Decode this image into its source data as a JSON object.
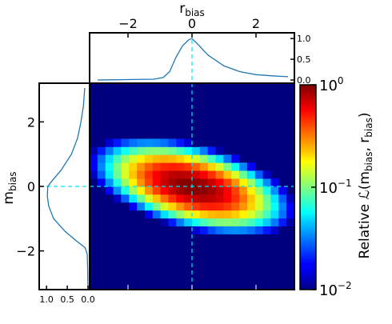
{
  "chart_data": {
    "type": "heatmap",
    "title": "",
    "xlabel": "r",
    "xlabel_sub": "bias",
    "ylabel": "m",
    "ylabel_sub": "bias",
    "colorbar_label_prefix": "Relative ",
    "colorbar_label_script": "ℒ",
    "colorbar_label_args_open": "(m",
    "colorbar_label_args_sub1": "bias",
    "colorbar_label_args_mid": ", r",
    "colorbar_label_args_sub2": "bias",
    "colorbar_label_args_close": ")",
    "xlim": [
      -3.2,
      3.2
    ],
    "ylim": [
      -3.2,
      3.2
    ],
    "x_ticks": [
      -2,
      0,
      2
    ],
    "x_tick_labels": [
      "−2",
      "0",
      "2"
    ],
    "y_ticks": [
      -2,
      0,
      2
    ],
    "y_tick_labels": [
      "−2",
      "0",
      "2"
    ],
    "color_scale": "log",
    "color_range": [
      0.01,
      1
    ],
    "colorbar_ticks": [
      {
        "value": 1,
        "base": "10",
        "exp": "0"
      },
      {
        "value": 0.1,
        "base": "10",
        "exp": "−1"
      },
      {
        "value": 0.01,
        "base": "10",
        "exp": "−2"
      }
    ],
    "colormap": "jet",
    "grid_bins": 26,
    "peak": {
      "x": 0.0,
      "y": 0.0
    },
    "crosshair_color": "#00e5ee",
    "marginal_color": "#1f77b4",
    "top_marginal": {
      "ylim": [
        0,
        1.1
      ],
      "ticks": [
        0,
        0.5,
        1.0
      ],
      "tick_labels": [
        "0.0",
        "0.5",
        "1.0"
      ],
      "x": [
        -2.95,
        -2.0,
        -1.2,
        -0.9,
        -0.7,
        -0.5,
        -0.3,
        -0.1,
        0.0,
        0.2,
        0.5,
        1.0,
        1.5,
        2.0,
        2.5,
        3.0
      ],
      "y": [
        0.0,
        0.01,
        0.02,
        0.06,
        0.2,
        0.55,
        0.82,
        0.97,
        1.0,
        0.85,
        0.6,
        0.34,
        0.2,
        0.13,
        0.1,
        0.08
      ]
    },
    "left_marginal": {
      "xlim_reversed": [
        1.1,
        0
      ],
      "ticks": [
        1.0,
        0.5,
        0.0
      ],
      "tick_labels": [
        "1.0",
        "0.5",
        "0.0"
      ],
      "y": [
        3.05,
        2.5,
        2.0,
        1.5,
        1.0,
        0.5,
        0.2,
        0.0,
        -0.3,
        -0.6,
        -1.0,
        -1.4,
        -1.7,
        -1.9,
        -2.1,
        -2.5,
        -3.2
      ],
      "x": [
        0.08,
        0.11,
        0.17,
        0.25,
        0.4,
        0.65,
        0.85,
        0.97,
        0.98,
        0.95,
        0.83,
        0.55,
        0.27,
        0.07,
        0.02,
        0.01,
        0.0
      ]
    }
  }
}
